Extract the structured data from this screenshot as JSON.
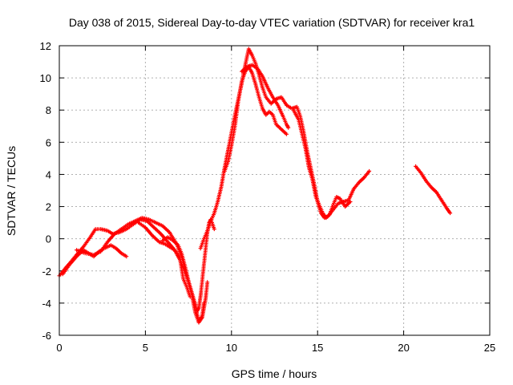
{
  "chart_data": {
    "type": "scatter",
    "title": "Day 038 of 2015, Sidereal Day-to-day VTEC variation (SDTVAR) for receiver kra1",
    "xlabel": "GPS time / hours",
    "ylabel": "SDTVAR / TECUs",
    "xlim": [
      0,
      25
    ],
    "ylim": [
      -6,
      12
    ],
    "xticks": [
      "0",
      "5",
      "10",
      "15",
      "20",
      "25"
    ],
    "yticks": [
      "-6",
      "-4",
      "-2",
      "0",
      "2",
      "4",
      "6",
      "8",
      "10",
      "12"
    ],
    "grid": true,
    "legend": "none",
    "marker": "+",
    "color": "#ff0000",
    "tracks": [
      [
        [
          0,
          -2.3
        ],
        [
          0.3,
          -1.9
        ],
        [
          0.7,
          -1.4
        ],
        [
          1.0,
          -1.0
        ],
        [
          1.4,
          -0.5
        ],
        [
          1.8,
          0.1
        ],
        [
          2.1,
          0.6
        ],
        [
          2.4,
          0.6
        ],
        [
          2.8,
          0.5
        ],
        [
          3.1,
          0.3
        ],
        [
          3.5,
          0.4
        ],
        [
          3.9,
          0.6
        ],
        [
          4.3,
          0.9
        ],
        [
          4.7,
          1.2
        ],
        [
          5.1,
          1.1
        ],
        [
          5.5,
          0.7
        ],
        [
          5.9,
          0.3
        ],
        [
          6.3,
          -0.2
        ],
        [
          6.7,
          -0.7
        ],
        [
          7.0,
          -1.3
        ],
        [
          7.3,
          -2.1
        ],
        [
          7.6,
          -3.0
        ],
        [
          7.9,
          -4.1
        ],
        [
          8.1,
          -5.2
        ],
        [
          8.3,
          -4.9
        ],
        [
          8.5,
          -3.7
        ],
        [
          8.6,
          -2.7
        ]
      ],
      [
        [
          0.2,
          -2.2
        ],
        [
          0.6,
          -1.6
        ],
        [
          1.0,
          -1.1
        ],
        [
          1.4,
          -0.7
        ],
        [
          1.7,
          -0.9
        ],
        [
          2.0,
          -1.1
        ],
        [
          2.3,
          -0.8
        ],
        [
          2.6,
          -0.6
        ],
        [
          3.0,
          -0.4
        ],
        [
          3.3,
          -0.6
        ],
        [
          3.6,
          -0.9
        ],
        [
          3.9,
          -1.1
        ]
      ],
      [
        [
          1.0,
          -0.7
        ],
        [
          1.5,
          -0.9
        ],
        [
          2.0,
          -1.0
        ],
        [
          2.4,
          -0.8
        ],
        [
          2.8,
          -0.2
        ],
        [
          3.2,
          0.3
        ],
        [
          3.6,
          0.6
        ],
        [
          4.0,
          0.9
        ],
        [
          4.4,
          1.1
        ],
        [
          4.8,
          1.3
        ],
        [
          5.2,
          1.2
        ],
        [
          5.6,
          1.0
        ],
        [
          6.0,
          0.8
        ],
        [
          6.4,
          0.4
        ],
        [
          6.8,
          -0.3
        ],
        [
          7.1,
          -1.1
        ],
        [
          7.4,
          -2.3
        ],
        [
          7.7,
          -3.5
        ],
        [
          7.9,
          -4.6
        ],
        [
          8.1,
          -5.2
        ],
        [
          8.3,
          -4.8
        ],
        [
          8.4,
          -4.0
        ]
      ],
      [
        [
          4.6,
          1.0
        ],
        [
          5.0,
          0.7
        ],
        [
          5.4,
          0.2
        ],
        [
          5.8,
          -0.2
        ],
        [
          6.1,
          -0.3
        ],
        [
          6.4,
          -0.5
        ],
        [
          6.7,
          -0.7
        ],
        [
          7.0,
          -1.2
        ],
        [
          7.2,
          -2.5
        ],
        [
          7.4,
          -3.0
        ],
        [
          7.6,
          -3.6
        ]
      ],
      [
        [
          6.0,
          -0.1
        ],
        [
          6.3,
          0.1
        ],
        [
          6.6,
          -0.1
        ],
        [
          6.9,
          -0.4
        ],
        [
          7.1,
          -0.9
        ],
        [
          7.3,
          -1.7
        ],
        [
          7.5,
          -2.6
        ],
        [
          7.7,
          -3.4
        ],
        [
          7.9,
          -4.2
        ],
        [
          8.0,
          -4.5
        ],
        [
          8.1,
          -4.3
        ],
        [
          8.2,
          -3.6
        ],
        [
          8.3,
          -2.6
        ],
        [
          8.4,
          -1.6
        ],
        [
          8.5,
          -0.6
        ],
        [
          8.6,
          0.4
        ],
        [
          8.7,
          1.0
        ],
        [
          8.8,
          1.2
        ],
        [
          8.9,
          0.9
        ],
        [
          9.0,
          0.6
        ]
      ],
      [
        [
          8.2,
          -0.6
        ],
        [
          8.4,
          0.0
        ],
        [
          8.6,
          0.5
        ],
        [
          8.8,
          1.1
        ],
        [
          9.0,
          1.6
        ],
        [
          9.2,
          2.3
        ],
        [
          9.4,
          3.2
        ],
        [
          9.6,
          4.4
        ],
        [
          9.8,
          5.5
        ],
        [
          10.0,
          6.6
        ],
        [
          10.2,
          7.7
        ],
        [
          10.4,
          8.7
        ],
        [
          10.6,
          9.7
        ],
        [
          10.8,
          10.8
        ],
        [
          11.0,
          11.8
        ],
        [
          11.2,
          11.4
        ],
        [
          11.4,
          10.9
        ],
        [
          11.6,
          10.2
        ],
        [
          11.8,
          9.4
        ],
        [
          12.0,
          8.8
        ],
        [
          12.3,
          8.4
        ],
        [
          12.6,
          8.7
        ],
        [
          12.9,
          8.8
        ],
        [
          13.2,
          8.3
        ],
        [
          13.5,
          8.1
        ],
        [
          13.8,
          8.2
        ],
        [
          14.0,
          7.6
        ],
        [
          14.2,
          6.6
        ],
        [
          14.4,
          5.4
        ],
        [
          14.6,
          4.4
        ],
        [
          14.8,
          3.4
        ],
        [
          15.0,
          2.3
        ],
        [
          15.2,
          1.6
        ],
        [
          15.4,
          1.3
        ],
        [
          15.6,
          1.4
        ],
        [
          15.9,
          1.8
        ],
        [
          16.2,
          2.2
        ],
        [
          16.5,
          2.3
        ],
        [
          16.8,
          2.4
        ],
        [
          17.1,
          3.1
        ],
        [
          17.4,
          3.5
        ],
        [
          17.7,
          3.8
        ],
        [
          18.0,
          4.2
        ]
      ],
      [
        [
          9.6,
          4.2
        ],
        [
          9.8,
          4.8
        ],
        [
          10.0,
          5.8
        ],
        [
          10.2,
          7.0
        ],
        [
          10.4,
          8.6
        ],
        [
          10.6,
          9.8
        ],
        [
          10.8,
          10.4
        ],
        [
          11.0,
          10.7
        ],
        [
          11.2,
          10.3
        ],
        [
          11.4,
          9.6
        ],
        [
          11.6,
          8.8
        ],
        [
          11.8,
          8.1
        ],
        [
          12.0,
          7.7
        ],
        [
          12.2,
          7.9
        ],
        [
          12.4,
          7.7
        ],
        [
          12.6,
          7.1
        ],
        [
          12.8,
          6.9
        ],
        [
          13.0,
          6.7
        ],
        [
          13.2,
          6.5
        ]
      ],
      [
        [
          10.6,
          10.4
        ],
        [
          10.9,
          10.7
        ],
        [
          11.2,
          10.8
        ],
        [
          11.5,
          10.6
        ],
        [
          11.8,
          10.1
        ],
        [
          12.1,
          9.4
        ],
        [
          12.4,
          8.8
        ],
        [
          12.7,
          8.3
        ],
        [
          13.0,
          7.6
        ],
        [
          13.2,
          7.1
        ],
        [
          13.3,
          6.9
        ]
      ],
      [
        [
          13.6,
          8.0
        ],
        [
          13.9,
          7.4
        ],
        [
          14.1,
          6.5
        ],
        [
          14.3,
          5.6
        ],
        [
          14.5,
          4.4
        ],
        [
          14.7,
          3.7
        ],
        [
          14.9,
          2.6
        ],
        [
          15.1,
          2.1
        ],
        [
          15.3,
          1.6
        ],
        [
          15.5,
          1.3
        ],
        [
          15.7,
          1.5
        ],
        [
          15.9,
          2.1
        ],
        [
          16.1,
          2.6
        ],
        [
          16.3,
          2.5
        ],
        [
          16.6,
          2.0
        ],
        [
          16.9,
          2.3
        ]
      ],
      [
        [
          20.7,
          4.5
        ],
        [
          21.0,
          4.1
        ],
        [
          21.3,
          3.6
        ],
        [
          21.6,
          3.2
        ],
        [
          21.9,
          2.9
        ],
        [
          22.2,
          2.4
        ],
        [
          22.5,
          1.9
        ],
        [
          22.7,
          1.6
        ]
      ]
    ]
  }
}
